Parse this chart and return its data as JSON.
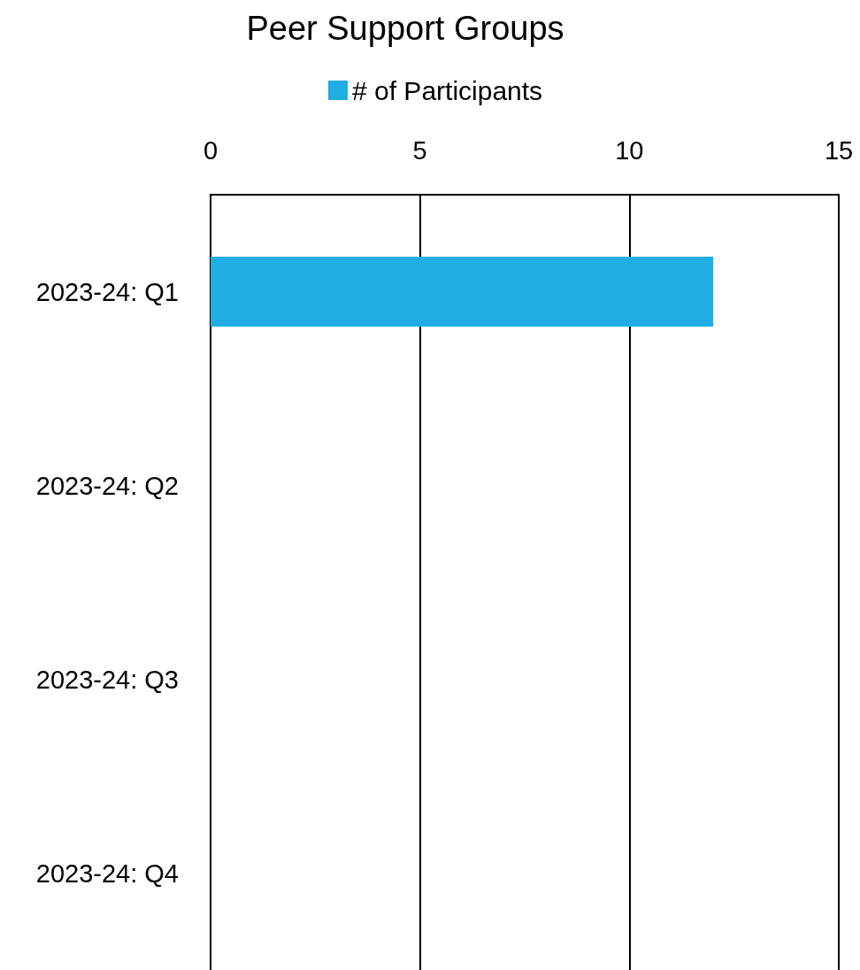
{
  "chart_data": {
    "type": "bar",
    "orientation": "horizontal",
    "title": "Peer Support Groups",
    "categories": [
      "2023-24: Q1",
      "2023-24: Q2",
      "2023-24: Q3",
      "2023-24: Q4"
    ],
    "series": [
      {
        "name": "# of Participants",
        "color": "#1fade2",
        "values": [
          12,
          null,
          null,
          null
        ]
      }
    ],
    "xlim": [
      0,
      15
    ],
    "xticks": [
      0,
      5,
      10,
      15
    ],
    "grid": "x",
    "legend": "top"
  }
}
